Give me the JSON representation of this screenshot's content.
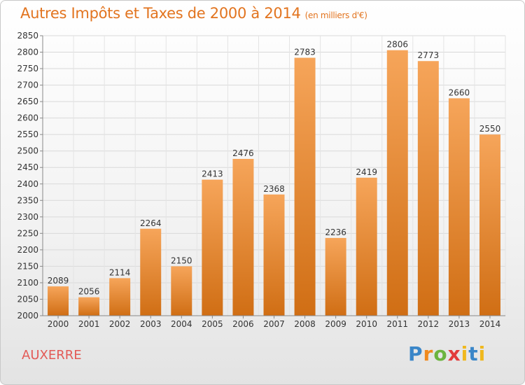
{
  "header": {
    "title": "Autres Impôts et Taxes de 2000 à 2014",
    "unit": "(en milliers d'€)"
  },
  "footer": {
    "city": "AUXERRE",
    "brand": "Proxiti"
  },
  "colors": {
    "bar_light": "#f6a55a",
    "bar_dark": "#d06e14",
    "title": "#e2741f",
    "city": "#e35a56"
  },
  "chart_data": {
    "type": "bar",
    "title": "Autres Impôts et Taxes de 2000 à 2014",
    "subtitle": "(en milliers d'€)",
    "xlabel": "",
    "ylabel": "",
    "categories": [
      "2000",
      "2001",
      "2002",
      "2003",
      "2004",
      "2005",
      "2006",
      "2007",
      "2008",
      "2009",
      "2010",
      "2011",
      "2012",
      "2013",
      "2014"
    ],
    "values": [
      2089,
      2056,
      2114,
      2264,
      2150,
      2413,
      2476,
      2368,
      2783,
      2236,
      2419,
      2806,
      2773,
      2660,
      2550
    ],
    "ylim": [
      2000,
      2850
    ],
    "ytick_step": 50,
    "grid": true,
    "legend": "none"
  }
}
